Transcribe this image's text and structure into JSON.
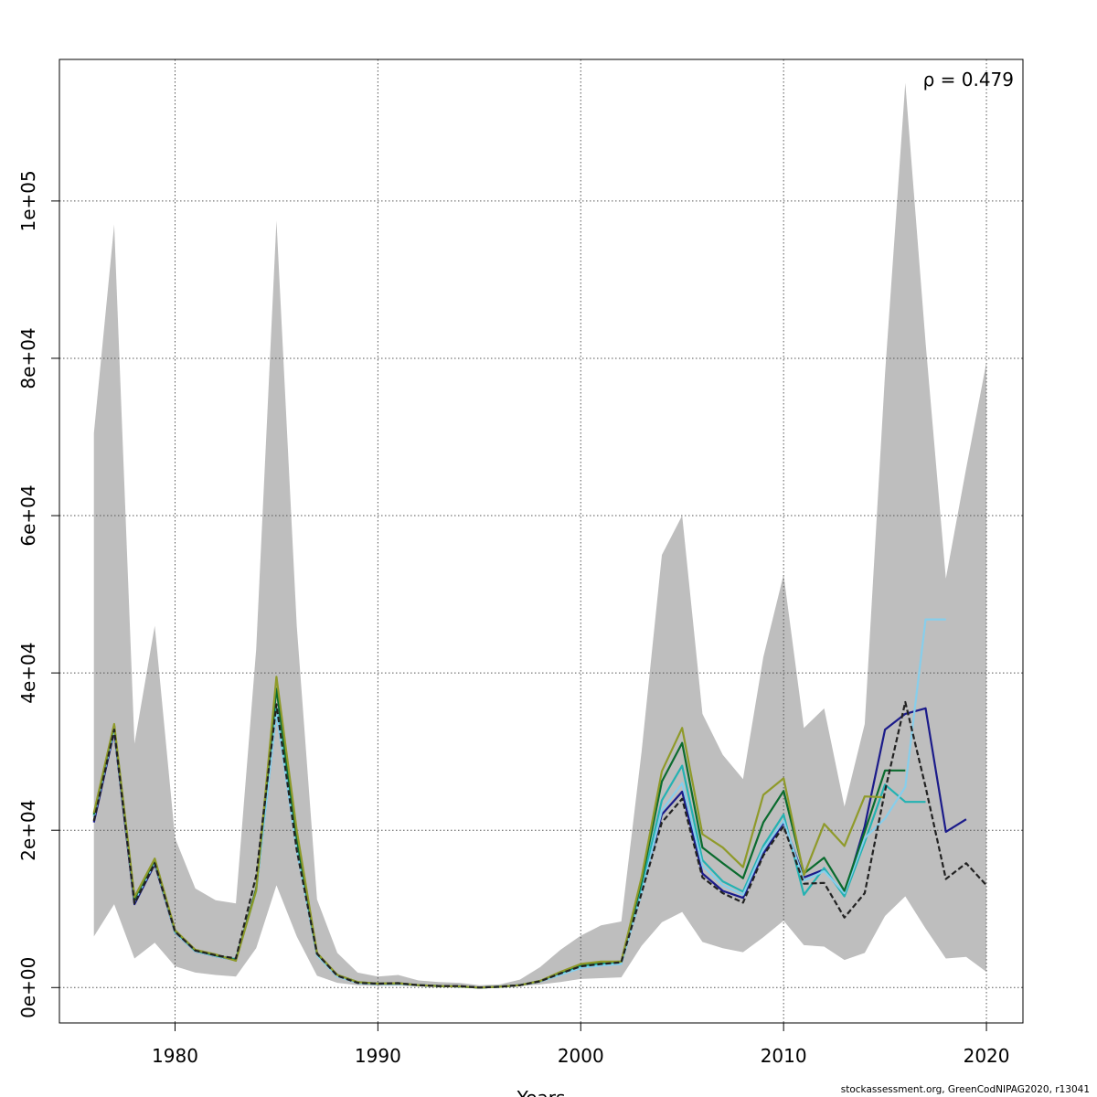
{
  "chart_data": {
    "type": "line",
    "title": "",
    "xlabel": "Years",
    "ylabel": "",
    "xlim": [
      1974.3,
      2021.8
    ],
    "ylim": [
      -4500,
      118000
    ],
    "x_ticks": [
      1980,
      1990,
      2000,
      2010,
      2020
    ],
    "x_tick_labels": [
      "1980",
      "1990",
      "2000",
      "2010",
      "2020"
    ],
    "y_ticks": [
      0,
      20000,
      40000,
      60000,
      80000,
      100000
    ],
    "y_tick_labels": [
      "0e+00",
      "2e+04",
      "4e+04",
      "6e+04",
      "8e+04",
      "1e+05"
    ],
    "grid": true,
    "annotation": "ρ = 0.479",
    "colors": {
      "band": "#bebebe",
      "grid": "#555555",
      "base": "#222222"
    },
    "confidence_band": {
      "x": [
        1976,
        1977,
        1978,
        1979,
        1980,
        1981,
        1982,
        1983,
        1984,
        1985,
        1986,
        1987,
        1988,
        1989,
        1990,
        1991,
        1992,
        1993,
        1994,
        1995,
        1996,
        1997,
        1998,
        1999,
        2000,
        2001,
        2002,
        2003,
        2004,
        2005,
        2006,
        2007,
        2008,
        2009,
        2010,
        2011,
        2012,
        2013,
        2014,
        2015,
        2016,
        2017,
        2018,
        2019,
        2020
      ],
      "upper": [
        70500,
        97000,
        31000,
        46000,
        19000,
        12600,
        11100,
        10700,
        43000,
        97500,
        46000,
        11200,
        4400,
        1900,
        1400,
        1600,
        900,
        700,
        600,
        300,
        400,
        1000,
        2600,
        4800,
        6600,
        7900,
        8400,
        30000,
        55000,
        60000,
        34800,
        29600,
        26500,
        42000,
        52500,
        33000,
        35500,
        23000,
        33500,
        78000,
        115000,
        82000,
        52000,
        66000,
        79500
      ],
      "lower": [
        6500,
        10600,
        3700,
        5700,
        2700,
        1900,
        1600,
        1400,
        5000,
        13000,
        6500,
        1500,
        600,
        300,
        200,
        250,
        150,
        100,
        100,
        0,
        50,
        200,
        400,
        700,
        1100,
        1200,
        1300,
        5300,
        8300,
        9600,
        5800,
        5000,
        4500,
        6400,
        8500,
        5400,
        5200,
        3500,
        4400,
        9100,
        11600,
        7500,
        3700,
        3900,
        2000
      ]
    },
    "series": [
      {
        "name": "",
        "color": "#222222",
        "dashed": true,
        "x": [
          1976,
          1977,
          1978,
          1979,
          1980,
          1981,
          1982,
          1983,
          1984,
          1985,
          1986,
          1987,
          1988,
          1989,
          1990,
          1991,
          1992,
          1993,
          1994,
          1995,
          1996,
          1997,
          1998,
          1999,
          2000,
          2001,
          2002,
          2003,
          2004,
          2005,
          2006,
          2007,
          2008,
          2009,
          2010,
          2011,
          2012,
          2013,
          2014,
          2015,
          2016,
          2017,
          2018,
          2019,
          2020
        ],
        "values": [
          21200,
          32800,
          10700,
          15800,
          7100,
          4700,
          4100,
          3700,
          14200,
          36000,
          17500,
          4300,
          1500,
          600,
          500,
          550,
          300,
          200,
          200,
          0,
          100,
          300,
          800,
          1800,
          2700,
          3000,
          3200,
          12000,
          21000,
          24000,
          14000,
          12000,
          10800,
          16800,
          20500,
          13200,
          13300,
          8900,
          12000,
          25000,
          36300,
          25500,
          13800,
          15800,
          13000
        ]
      },
      {
        "name": "",
        "color": "#1b1b8a",
        "dashed": false,
        "x": [
          1976,
          1977,
          1978,
          1979,
          1980,
          1981,
          1982,
          1983,
          1984,
          1985,
          1986,
          1987,
          1988,
          1989,
          1990,
          1991,
          1992,
          1993,
          1994,
          1995,
          1996,
          1997,
          1998,
          1999,
          2000,
          2001,
          2002,
          2003,
          2004,
          2005,
          2006,
          2007,
          2008,
          2009,
          2010,
          2011,
          2012,
          2013,
          2014,
          2015,
          2016,
          2017,
          2018,
          2019
        ],
        "values": [
          21000,
          32600,
          10600,
          15700,
          7000,
          4600,
          4000,
          3500,
          12400,
          35200,
          17800,
          4200,
          1500,
          600,
          450,
          500,
          300,
          200,
          150,
          0,
          100,
          300,
          800,
          1700,
          2600,
          2900,
          3100,
          12200,
          22000,
          24900,
          14500,
          12300,
          11400,
          17000,
          21000,
          14000,
          15000,
          11800,
          20500,
          32800,
          34800,
          35500,
          19800,
          21400
        ]
      },
      {
        "name": "",
        "color": "#23b2b2",
        "dashed": false,
        "x": [
          1976,
          1977,
          1978,
          1979,
          1980,
          1981,
          1982,
          1983,
          1984,
          1985,
          1986,
          1987,
          1988,
          1989,
          1990,
          1991,
          1992,
          1993,
          1994,
          1995,
          1996,
          1997,
          1998,
          1999,
          2000,
          2001,
          2002,
          2003,
          2004,
          2005,
          2006,
          2007,
          2008,
          2009,
          2010,
          2011,
          2012,
          2013,
          2014,
          2015,
          2016,
          2017,
          2018
        ],
        "values": [
          21800,
          33000,
          11100,
          16000,
          7100,
          4700,
          4100,
          3600,
          12300,
          35500,
          18000,
          4200,
          1500,
          600,
          450,
          500,
          300,
          200,
          150,
          0,
          100,
          300,
          800,
          1700,
          2700,
          3000,
          3100,
          12800,
          23800,
          28200,
          16200,
          13500,
          12200,
          18000,
          22000,
          11800,
          15200,
          11600,
          18500,
          25800,
          23600,
          23600,
          null
        ]
      },
      {
        "name": "",
        "color": "#87ceeb",
        "dashed": false,
        "x": [
          1976,
          1977,
          1978,
          1979,
          1980,
          1981,
          1982,
          1983,
          1984,
          1985,
          1986,
          1987,
          1988,
          1989,
          1990,
          1991,
          1992,
          1993,
          1994,
          1995,
          1996,
          1997,
          1998,
          1999,
          2000,
          2001,
          2002,
          2003,
          2004,
          2005,
          2006,
          2007,
          2008,
          2009,
          2010,
          2011,
          2012,
          2013,
          2014,
          2015,
          2016,
          2017,
          2018
        ],
        "values": [
          21700,
          32900,
          11000,
          15900,
          7000,
          4600,
          4000,
          3500,
          12200,
          35000,
          17500,
          4100,
          1400,
          600,
          450,
          500,
          300,
          200,
          150,
          0,
          100,
          300,
          800,
          1600,
          2500,
          2800,
          3000,
          12000,
          22500,
          26000,
          15500,
          13000,
          11800,
          17600,
          21200,
          13600,
          14800,
          12000,
          19000,
          21500,
          25500,
          46800,
          46800
        ]
      },
      {
        "name": "",
        "color": "#0a6b2e",
        "dashed": false,
        "x": [
          1976,
          1977,
          1978,
          1979,
          1980,
          1981,
          1982,
          1983,
          1984,
          1985,
          1986,
          1987,
          1988,
          1989,
          1990,
          1991,
          1992,
          1993,
          1994,
          1995,
          1996,
          1997,
          1998,
          1999,
          2000,
          2001,
          2002,
          2003,
          2004,
          2005,
          2006,
          2007,
          2008,
          2009,
          2010,
          2011,
          2012,
          2013,
          2014,
          2015,
          2016
        ],
        "values": [
          22000,
          33300,
          11300,
          16200,
          7200,
          4700,
          4100,
          3500,
          12500,
          38000,
          19000,
          4300,
          1600,
          700,
          500,
          550,
          300,
          200,
          150,
          0,
          100,
          300,
          850,
          1900,
          2900,
          3200,
          3300,
          13500,
          26200,
          31100,
          17800,
          15800,
          13900,
          21000,
          25000,
          14500,
          16500,
          12300,
          19800,
          27600,
          27600
        ]
      },
      {
        "name": "",
        "color": "#8f9a2a",
        "dashed": false,
        "x": [
          1976,
          1977,
          1978,
          1979,
          1980,
          1981,
          1982,
          1983,
          1984,
          1985,
          1986,
          1987,
          1988,
          1989,
          1990,
          1991,
          1992,
          1993,
          1994,
          1995,
          1996,
          1997,
          1998,
          1999,
          2000,
          2001,
          2002,
          2003,
          2004,
          2005,
          2006,
          2007,
          2008,
          2009,
          2010,
          2011,
          2012,
          2013,
          2014,
          2015
        ],
        "values": [
          22200,
          33500,
          11500,
          16400,
          7300,
          4800,
          4200,
          3400,
          12300,
          39500,
          20000,
          4400,
          1600,
          700,
          500,
          550,
          300,
          200,
          150,
          0,
          100,
          300,
          850,
          2000,
          3000,
          3300,
          3300,
          14000,
          27500,
          33000,
          19500,
          17800,
          15300,
          24500,
          26600,
          14300,
          20800,
          18000,
          24300,
          24200
        ]
      }
    ]
  },
  "footer": {
    "credit": "stockassessment.org, GreenCodNIPAG2020, r13041"
  }
}
